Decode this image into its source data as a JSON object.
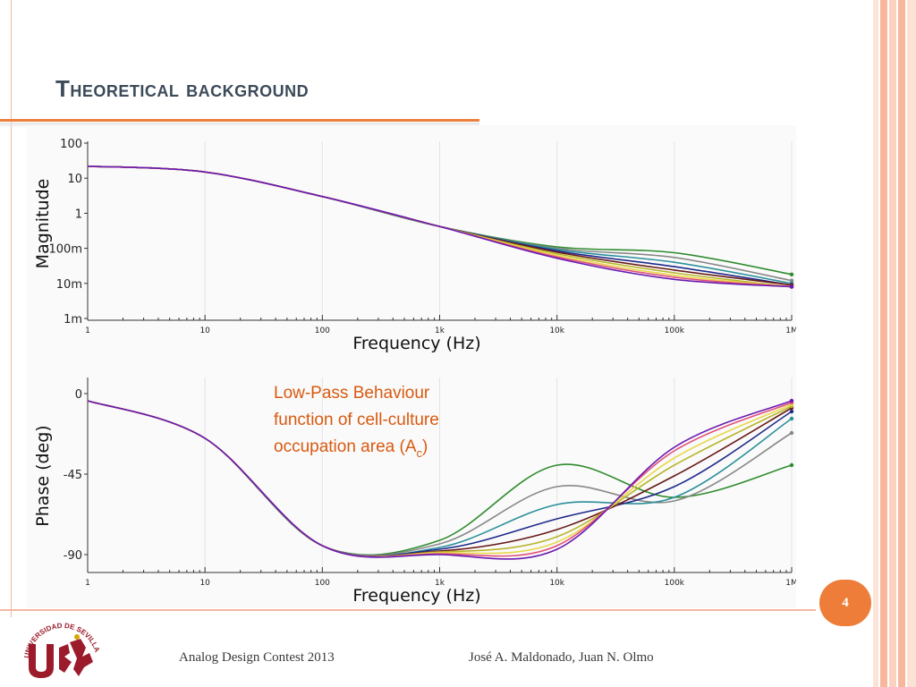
{
  "slide": {
    "title": "Theoretical background",
    "page_number": "4",
    "footer_left": "Analog Design Contest 2013",
    "footer_right": "José A. Maldonado, Juan N. Olmo",
    "logo": {
      "icon": "universidad-de-sevilla-seal-icon",
      "text": "UNIVERSIDAD DE SEVILLA"
    },
    "colors": {
      "accent": "#ec7f3c",
      "title": "#3c4a59",
      "annotation": "#d9590f"
    }
  },
  "chart_data": [
    {
      "type": "line",
      "ylabel": "Magnitude",
      "xlabel": "Frequency (Hz)",
      "x_scale": "log",
      "y_scale": "log",
      "xlim": [
        1,
        1000000
      ],
      "ylim": [
        0.001,
        100
      ],
      "x_ticks": [
        "1",
        "10",
        "100",
        "1k",
        "10k",
        "100k",
        "1M"
      ],
      "y_ticks": [
        "100",
        "10",
        "1",
        "100m",
        "10m",
        "1m"
      ],
      "x": [
        1,
        10,
        100,
        1000,
        10000,
        100000,
        1000000
      ],
      "series": [
        {
          "color": "#2e8b2e",
          "values": [
            22,
            15,
            3,
            0.42,
            0.11,
            0.075,
            0.018
          ]
        },
        {
          "color": "#888888",
          "values": [
            22,
            15,
            3,
            0.42,
            0.1,
            0.055,
            0.012
          ]
        },
        {
          "color": "#2a8f9a",
          "values": [
            22,
            15,
            3,
            0.42,
            0.093,
            0.04,
            0.01
          ]
        },
        {
          "color": "#1e2a8a",
          "values": [
            22,
            15,
            3,
            0.42,
            0.085,
            0.03,
            0.009
          ]
        },
        {
          "color": "#6a1a1a",
          "values": [
            22,
            15,
            3,
            0.42,
            0.078,
            0.024,
            0.009
          ]
        },
        {
          "color": "#b8b52a",
          "values": [
            22,
            15,
            3,
            0.42,
            0.07,
            0.02,
            0.008
          ]
        },
        {
          "color": "#e8d84a",
          "values": [
            22,
            15,
            3,
            0.42,
            0.063,
            0.017,
            0.008
          ]
        },
        {
          "color": "#e0507a",
          "values": [
            22,
            15,
            3,
            0.42,
            0.057,
            0.015,
            0.008
          ]
        },
        {
          "color": "#6a1ab0",
          "values": [
            22,
            15,
            3,
            0.42,
            0.052,
            0.013,
            0.008
          ]
        }
      ]
    },
    {
      "type": "line",
      "ylabel": "Phase (deg)",
      "xlabel": "Frequency (Hz)",
      "x_scale": "log",
      "xlim": [
        1,
        1000000
      ],
      "ylim": [
        -100,
        5
      ],
      "x_ticks": [
        "1",
        "10",
        "100",
        "1k",
        "10k",
        "100k",
        "1M"
      ],
      "y_ticks": [
        "0",
        "-45",
        "-90"
      ],
      "x": [
        1,
        10,
        100,
        1000,
        10000,
        100000,
        1000000
      ],
      "annotation": "Low-Pass Behaviour function of cell-culture occupation area (Ac)",
      "annotation_lines": [
        "Low-Pass Behaviour",
        "function of cell-culture",
        "occupation area (A",
        "c",
        ")"
      ],
      "series": [
        {
          "color": "#2e8b2e",
          "values": [
            -4,
            -25,
            -85,
            -82,
            -40,
            -58,
            -40
          ]
        },
        {
          "color": "#888888",
          "values": [
            -4,
            -25,
            -85,
            -84,
            -52,
            -60,
            -22
          ]
        },
        {
          "color": "#2a8f9a",
          "values": [
            -4,
            -25,
            -85,
            -86,
            -62,
            -58,
            -14
          ]
        },
        {
          "color": "#1e2a8a",
          "values": [
            -4,
            -25,
            -85,
            -87,
            -70,
            -52,
            -10
          ]
        },
        {
          "color": "#6a1a1a",
          "values": [
            -4,
            -25,
            -85,
            -88,
            -76,
            -46,
            -8
          ]
        },
        {
          "color": "#b8b52a",
          "values": [
            -4,
            -25,
            -85,
            -88.5,
            -80,
            -40,
            -7
          ]
        },
        {
          "color": "#e8d84a",
          "values": [
            -4,
            -25,
            -85,
            -89,
            -83,
            -36,
            -6
          ]
        },
        {
          "color": "#e0507a",
          "values": [
            -4,
            -25,
            -85,
            -89.5,
            -85,
            -32,
            -5
          ]
        },
        {
          "color": "#6a1ab0",
          "values": [
            -4,
            -25,
            -85,
            -90,
            -87,
            -30,
            -4
          ]
        }
      ]
    }
  ]
}
